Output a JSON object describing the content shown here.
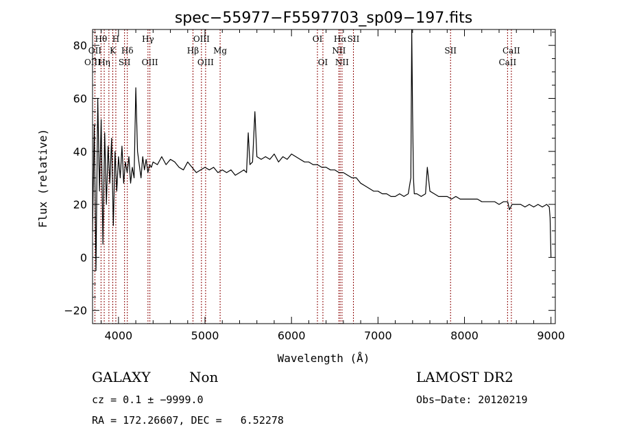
{
  "chart_data": {
    "type": "line",
    "title": "spec−55977−F5597703_sp09−197.fits",
    "xlabel": "Wavelength (Å)",
    "ylabel": "Flux (relative)",
    "xlim": [
      3700,
      9050
    ],
    "ylim": [
      -25,
      86
    ],
    "xticks": [
      4000,
      5000,
      6000,
      7000,
      8000,
      9000
    ],
    "yticks": [
      -20,
      0,
      20,
      40,
      60,
      80
    ],
    "series": [
      {
        "x": [
          3700,
          3720,
          3740,
          3760,
          3780,
          3800,
          3820,
          3840,
          3860,
          3880,
          3900,
          3920,
          3940,
          3960,
          3980,
          4000,
          4020,
          4040,
          4060,
          4080,
          4100,
          4120,
          4140,
          4160,
          4180,
          4200,
          4220,
          4240,
          4260,
          4280,
          4300,
          4320,
          4340,
          4360,
          4380,
          4400,
          4450,
          4500,
          4550,
          4600,
          4650,
          4700,
          4750,
          4800,
          4850,
          4900,
          4950,
          5000,
          5050,
          5100,
          5150,
          5200,
          5250,
          5300,
          5350,
          5400,
          5450,
          5480,
          5500,
          5520,
          5550,
          5577,
          5600,
          5650,
          5700,
          5750,
          5800,
          5850,
          5900,
          5950,
          6000,
          6050,
          6100,
          6150,
          6200,
          6250,
          6300,
          6350,
          6400,
          6450,
          6500,
          6550,
          6600,
          6650,
          6700,
          6750,
          6800,
          6850,
          6900,
          6950,
          7000,
          7050,
          7100,
          7150,
          7200,
          7250,
          7300,
          7350,
          7380,
          7390,
          7400,
          7410,
          7420,
          7450,
          7500,
          7550,
          7570,
          7600,
          7650,
          7700,
          7750,
          7800,
          7850,
          7900,
          7950,
          8000,
          8050,
          8100,
          8150,
          8200,
          8250,
          8300,
          8350,
          8400,
          8450,
          8500,
          8520,
          8550,
          8600,
          8650,
          8700,
          8750,
          8800,
          8850,
          8900,
          8950,
          8980,
          8990,
          9000
        ],
        "values": [
          10,
          50,
          -5,
          60,
          25,
          52,
          5,
          47,
          20,
          42,
          28,
          45,
          12,
          40,
          25,
          38,
          30,
          42,
          28,
          36,
          32,
          38,
          28,
          34,
          30,
          64,
          40,
          35,
          30,
          38,
          33,
          37,
          32,
          35,
          34,
          36,
          35,
          38,
          35,
          37,
          36,
          34,
          33,
          36,
          34,
          32,
          33,
          34,
          33,
          34,
          32,
          33,
          32,
          33,
          31,
          32,
          33,
          32,
          47,
          35,
          36,
          55,
          38,
          37,
          38,
          37,
          39,
          36,
          38,
          37,
          39,
          38,
          37,
          36,
          36,
          35,
          35,
          34,
          34,
          33,
          33,
          32,
          32,
          31,
          30,
          30,
          28,
          27,
          26,
          25,
          25,
          24,
          24,
          23,
          23,
          24,
          23,
          24,
          30,
          86,
          55,
          30,
          24,
          24,
          23,
          24,
          34,
          25,
          24,
          23,
          23,
          23,
          22,
          23,
          22,
          22,
          22,
          22,
          22,
          21,
          21,
          21,
          21,
          20,
          21,
          21,
          18,
          20,
          20,
          20,
          19,
          20,
          19,
          20,
          19,
          20,
          19,
          15,
          0
        ]
      }
    ],
    "line_markers": [
      {
        "label": "Hθ",
        "x": 3798,
        "row": 0
      },
      {
        "label": "H",
        "x": 3969,
        "row": 0
      },
      {
        "label": "Hγ",
        "x": 4341,
        "row": 0
      },
      {
        "label": "OIII",
        "x": 4959,
        "row": 0
      },
      {
        "label": "OI",
        "x": 6300,
        "row": 0
      },
      {
        "label": "Hα",
        "x": 6563,
        "row": 0
      },
      {
        "label": "SII",
        "x": 6716,
        "row": 0
      },
      {
        "label": "OII",
        "x": 3727,
        "row": 1
      },
      {
        "label": "K",
        "x": 3934,
        "row": 1
      },
      {
        "label": "Hδ",
        "x": 4102,
        "row": 1
      },
      {
        "label": "Hβ",
        "x": 4861,
        "row": 1
      },
      {
        "label": "Mg",
        "x": 5175,
        "row": 1
      },
      {
        "label": "NII",
        "x": 6548,
        "row": 1
      },
      {
        "label": "SII",
        "x": 7839,
        "row": 1
      },
      {
        "label": "CaII",
        "x": 8542,
        "row": 1
      },
      {
        "label": "OIII",
        "x": 3700,
        "row": 2
      },
      {
        "label": "Hη",
        "x": 3835,
        "row": 2
      },
      {
        "label": "SII",
        "x": 4070,
        "row": 2
      },
      {
        "label": "OIII",
        "x": 4363,
        "row": 2
      },
      {
        "label": "OIII",
        "x": 5007,
        "row": 2
      },
      {
        "label": "OI",
        "x": 6363,
        "row": 2
      },
      {
        "label": "NII",
        "x": 6584,
        "row": 2
      },
      {
        "label": "CaII",
        "x": 8498,
        "row": 2
      }
    ],
    "line_x": [
      3700,
      3727,
      3798,
      3835,
      3889,
      3934,
      3969,
      4070,
      4102,
      4341,
      4363,
      4861,
      4959,
      5007,
      5175,
      6300,
      6363,
      6548,
      6563,
      6584,
      6716,
      7839,
      8498,
      8542
    ]
  },
  "info": {
    "object_class": "GALAXY",
    "subclass": "Non",
    "survey": "LAMOST DR2",
    "redshift_line": "cz = 0.1 ± −9999.0",
    "obs_date": "Obs−Date: 20120219",
    "coords_line": "RA = 172.26607, DEC =   6.52278"
  },
  "colors": {
    "spectrum": "#000000",
    "marker_lines": "#8b0000"
  }
}
